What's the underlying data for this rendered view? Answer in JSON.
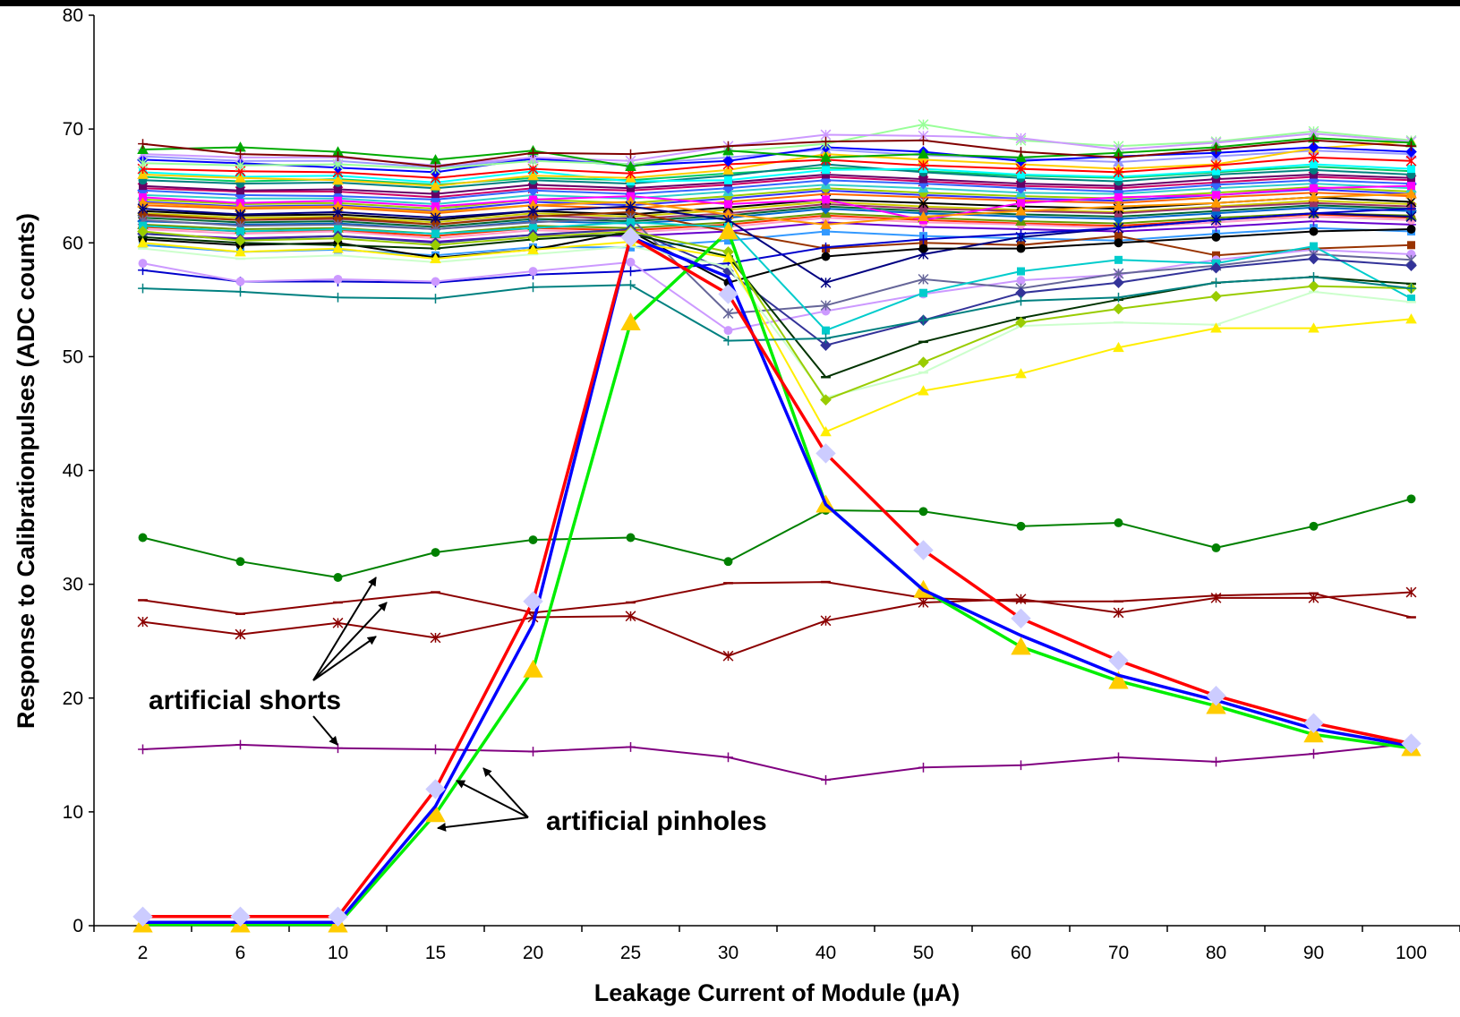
{
  "chart_data": {
    "type": "line",
    "xlabel": "Leakage Current of Module (µA)",
    "ylabel": "Response to Calibrationpulses (ADC counts)",
    "categories": [
      "2",
      "6",
      "10",
      "15",
      "20",
      "25",
      "30",
      "40",
      "50",
      "60",
      "70",
      "80",
      "90",
      "100"
    ],
    "ylim": [
      0,
      80
    ],
    "yticks": [
      "0",
      "10",
      "20",
      "30",
      "40",
      "50",
      "60",
      "70",
      "80"
    ],
    "grid": false,
    "annotations": [
      "artificial shorts",
      "artificial pinholes"
    ],
    "series_bundle_note": "",
    "series": [
      {
        "color": "#ff0000",
        "marker": "diamond",
        "markerColor": "#ccccff",
        "width": 3.5,
        "values": [
          0.8,
          0.8,
          0.8,
          12,
          28.5,
          60.5,
          55.5,
          41.5,
          33,
          27,
          23.3,
          20.2,
          17.8,
          16
        ]
      },
      {
        "color": "#0000ff",
        "marker": "none",
        "width": 3.5,
        "values": [
          0.3,
          0.3,
          0.3,
          10.5,
          26.5,
          60.5,
          57,
          37,
          29.5,
          25.5,
          22,
          19.8,
          17.3,
          15.8
        ]
      },
      {
        "color": "#00ee00",
        "marker": "triangle",
        "markerColor": "#ffcc00",
        "width": 3.5,
        "values": [
          0.1,
          0.1,
          0.1,
          9.8,
          22.5,
          53,
          61,
          37,
          29.5,
          24.5,
          21.5,
          19.3,
          16.8,
          15.6
        ]
      },
      {
        "color": "#008000",
        "marker": "circle",
        "width": 2,
        "values": [
          34.1,
          32,
          30.6,
          32.8,
          33.9,
          34.1,
          32,
          36.5,
          36.4,
          35.1,
          35.4,
          33.2,
          35.1,
          37.5
        ]
      },
      {
        "color": "#8b0000",
        "marker": "dash",
        "width": 2,
        "values": [
          28.6,
          27.4,
          28.4,
          29.3,
          27.5,
          28.4,
          30.1,
          30.2,
          28.8,
          28.5,
          28.5,
          29,
          29.2,
          27.1
        ]
      },
      {
        "color": "#8b0000",
        "marker": "star",
        "width": 2,
        "values": [
          26.7,
          25.6,
          26.6,
          25.3,
          27.1,
          27.2,
          23.7,
          26.8,
          28.4,
          28.7,
          27.5,
          28.8,
          28.8,
          29.3
        ]
      },
      {
        "color": "#800080",
        "marker": "plus",
        "width": 2,
        "values": [
          15.5,
          15.9,
          15.6,
          15.5,
          15.3,
          15.7,
          14.8,
          12.8,
          13.9,
          14.1,
          14.8,
          14.4,
          15.1,
          16
        ]
      },
      {
        "color": "#008080",
        "marker": "plus",
        "width": 2,
        "values": [
          56,
          55.7,
          55.2,
          55.1,
          56.1,
          56.3,
          51.4,
          51.6,
          53.2,
          54.9,
          55.2,
          56.5,
          57,
          56
        ]
      },
      {
        "color": "#ffee00",
        "marker": "triangle",
        "width": 2,
        "values": [
          60,
          59.2,
          59.5,
          58.6,
          59.4,
          60.1,
          58.7,
          43.4,
          47,
          48.5,
          50.8,
          52.5,
          52.5,
          53.3
        ]
      },
      {
        "color": "#99cc00",
        "marker": "diamond",
        "width": 2,
        "values": [
          61,
          60.2,
          60.4,
          59.8,
          60.5,
          61,
          59.2,
          46.2,
          49.5,
          53,
          54.2,
          55.3,
          56.2,
          56
        ]
      },
      {
        "color": "#003300",
        "marker": "dash",
        "width": 2,
        "values": [
          60.5,
          60,
          59.8,
          59.5,
          60.3,
          60.8,
          58.8,
          48.2,
          51.3,
          53.4,
          55,
          56.5,
          57,
          56.4
        ]
      },
      {
        "color": "#ccffcc",
        "marker": "dash",
        "width": 2,
        "values": [
          59.5,
          58.6,
          58.9,
          58.3,
          59,
          59.7,
          57.9,
          46.4,
          48.6,
          52.7,
          53,
          52.8,
          55.7,
          54.8
        ]
      },
      {
        "color": "#333399",
        "marker": "diamond",
        "width": 2,
        "values": [
          60.8,
          60.3,
          60.6,
          60,
          60.7,
          61.2,
          57.5,
          51,
          53.2,
          55.6,
          56.5,
          57.8,
          58.6,
          58
        ]
      },
      {
        "color": "#00cccc",
        "marker": "square",
        "width": 2,
        "values": [
          61.5,
          61,
          61.2,
          60.8,
          61.3,
          61.8,
          61.4,
          52.3,
          55.6,
          57.5,
          58.5,
          58.2,
          59.7,
          55.1
        ]
      },
      {
        "color": "#666699",
        "marker": "star",
        "width": 2,
        "values": [
          62,
          61.5,
          61.6,
          61.2,
          61.8,
          62.2,
          53.8,
          54.5,
          56.8,
          56,
          57.3,
          58,
          59,
          58.5
        ]
      },
      {
        "color": "#cc99ff",
        "marker": "circle",
        "width": 2,
        "values": [
          58.2,
          56.6,
          56.8,
          56.6,
          57.5,
          58.3,
          52.3,
          54,
          55.5,
          56.7,
          57.2,
          58.5,
          59.4,
          59
        ]
      },
      {
        "color": "#0000cc",
        "marker": "plus",
        "width": 2,
        "values": [
          57.6,
          56.6,
          56.6,
          56.5,
          57.2,
          57.5,
          58.2,
          59.6,
          60.3,
          60.8,
          61.3,
          62,
          62.6,
          63
        ]
      },
      {
        "color": "#000000",
        "marker": "circle",
        "width": 2,
        "values": [
          60.3,
          59.8,
          60,
          58.7,
          59.4,
          61,
          56.5,
          58.8,
          59.5,
          59.5,
          60,
          60.5,
          61,
          61.2
        ]
      },
      {
        "color": "#000080",
        "marker": "star",
        "width": 2,
        "values": [
          63,
          62.5,
          62.7,
          62.2,
          62.8,
          63.2,
          62,
          56.5,
          59,
          60.5,
          61.3,
          62,
          62.6,
          62.3
        ]
      },
      {
        "color": "#993300",
        "marker": "square",
        "width": 2,
        "values": [
          62.5,
          62,
          62.2,
          61.6,
          62.3,
          62.7,
          61,
          59.5,
          60,
          59.8,
          60.6,
          58.9,
          59.5,
          59.8
        ]
      },
      {
        "color": "#ff9900",
        "marker": "triangle",
        "width": 2,
        "values": [
          63.5,
          63.1,
          63.2,
          62.7,
          63.3,
          63.6,
          62.5,
          61.6,
          62.3,
          62.8,
          63.2,
          63.5,
          64,
          64.3
        ]
      },
      {
        "color": "#ff00ff",
        "marker": "square",
        "width": 2,
        "values": [
          64,
          63.5,
          63.7,
          63.2,
          63.8,
          64.1,
          63.4,
          63.8,
          62,
          63.5,
          64,
          64.2,
          64.8,
          65
        ]
      },
      {
        "color": "#800000",
        "marker": "plus",
        "width": 2,
        "values": [
          68.7,
          67.8,
          67.6,
          66.7,
          67.9,
          67.8,
          68.5,
          68.9,
          69,
          68,
          67.5,
          68.2,
          69,
          68.5
        ]
      },
      {
        "color": "#00aa00",
        "marker": "triangle",
        "width": 2,
        "values": [
          68.2,
          68.4,
          68,
          67.3,
          68.1,
          66.7,
          68.1,
          67.5,
          67.8,
          67.5,
          67.9,
          68.4,
          69.2,
          68.8
        ]
      },
      {
        "color": "#cc99ff",
        "marker": "star",
        "width": 2,
        "values": [
          67.8,
          67.5,
          67.5,
          66.8,
          67.5,
          67.2,
          68.5,
          69.5,
          69.4,
          69.2,
          68.2,
          68.8,
          69.6,
          68.9
        ]
      },
      {
        "color": "#99ff99",
        "marker": "star",
        "width": 2,
        "values": [
          67,
          66.8,
          66.9,
          66.5,
          67.2,
          66.9,
          68,
          68.7,
          70.4,
          69,
          68.5,
          68.9,
          69.8,
          69
        ]
      },
      {
        "color": "#0000ff",
        "marker": "diamond",
        "width": 2,
        "values": [
          67.3,
          67,
          66.6,
          66.2,
          67.4,
          66.8,
          67.2,
          68.4,
          68,
          67.2,
          67.6,
          67.9,
          68.4,
          68
        ]
      },
      {
        "color": "#ff0000",
        "marker": "star",
        "width": 2,
        "values": [
          66.5,
          66.3,
          66.2,
          65.7,
          66.5,
          66.1,
          66.9,
          67.3,
          66.8,
          66.5,
          66.2,
          66.8,
          67.5,
          67.2
        ]
      },
      {
        "color": "#ffcc00",
        "marker": "triangle",
        "width": 2,
        "values": [
          66,
          65.7,
          65.5,
          65,
          65.9,
          65.7,
          66.4,
          67.8,
          67.3,
          66.9,
          66.5,
          66.9,
          68.3,
          68.9
        ]
      },
      {
        "color": "#00ffff",
        "marker": "square",
        "width": 2,
        "values": [
          66.2,
          65.8,
          65.9,
          65.3,
          66.3,
          65.4,
          65.5,
          66.4,
          66.5,
          66,
          65.8,
          66.3,
          66.9,
          66.5
        ]
      },
      {
        "color": "#008080",
        "marker": "circle",
        "width": 2,
        "values": [
          65.5,
          65.2,
          65.3,
          64.8,
          65.5,
          65.2,
          65.9,
          66.9,
          66.2,
          65.7,
          65.4,
          66,
          66.4,
          66
        ]
      },
      {
        "color": "#660066",
        "marker": "square",
        "width": 2,
        "values": [
          65,
          64.6,
          64.7,
          64.3,
          65.1,
          64.8,
          65.3,
          66,
          65.6,
          65.2,
          65,
          65.6,
          66,
          65.7
        ]
      },
      {
        "color": "#3366ff",
        "marker": "diamond",
        "width": 2,
        "values": [
          64.6,
          64.2,
          64.1,
          63.8,
          64.6,
          64.3,
          64.8,
          65.5,
          65.2,
          64.8,
          64.5,
          65.1,
          65.5,
          65.2
        ]
      },
      {
        "color": "#33cccc",
        "marker": "triangle",
        "width": 2,
        "values": [
          64.2,
          63.9,
          63.9,
          63.4,
          64.2,
          63.9,
          64.5,
          65.1,
          64.8,
          64.4,
          64.3,
          64.8,
          65.2,
          64.8
        ]
      },
      {
        "color": "#99cc00",
        "marker": "circle",
        "width": 2,
        "values": [
          63.8,
          63.4,
          63.5,
          63,
          63.8,
          63.5,
          64.1,
          64.8,
          64.4,
          64.1,
          63.9,
          64.4,
          64.9,
          64.5
        ]
      },
      {
        "color": "#ff6600",
        "marker": "plus",
        "width": 2,
        "values": [
          63.3,
          63,
          63.1,
          62.6,
          63.3,
          63,
          63.6,
          64.3,
          64,
          63.7,
          63.5,
          64,
          64.4,
          64.1
        ]
      },
      {
        "color": "#000000",
        "marker": "star",
        "width": 2,
        "values": [
          62.8,
          62.4,
          62.5,
          62,
          62.8,
          62.5,
          63.1,
          63.8,
          63.5,
          63.2,
          63,
          63.5,
          64,
          63.6
        ]
      },
      {
        "color": "#993366",
        "marker": "square",
        "width": 2,
        "values": [
          62.4,
          62,
          62.1,
          61.6,
          62.4,
          62.1,
          62.6,
          63.4,
          63,
          62.8,
          62.6,
          63.1,
          63.5,
          63.2
        ]
      },
      {
        "color": "#0066cc",
        "marker": "diamond",
        "width": 2,
        "values": [
          61.9,
          61.6,
          61.7,
          61.2,
          61.9,
          61.7,
          62.2,
          63,
          62.6,
          62.3,
          62.1,
          62.6,
          63.1,
          62.8
        ]
      },
      {
        "color": "#669900",
        "marker": "triangle",
        "width": 2,
        "values": [
          61.6,
          61.2,
          61.3,
          60.8,
          61.5,
          61.3,
          61.8,
          62.6,
          62.2,
          61.9,
          61.7,
          62.2,
          62.6,
          62.4
        ]
      },
      {
        "color": "#ff99cc",
        "marker": "circle",
        "width": 2,
        "values": [
          61.2,
          60.8,
          61,
          60.4,
          61.1,
          60.9,
          61.4,
          62.2,
          61.8,
          61.6,
          61.3,
          61.8,
          62.3,
          62
        ]
      },
      {
        "color": "#6600cc",
        "marker": "plus",
        "width": 2,
        "values": [
          60.8,
          60.4,
          60.6,
          60.1,
          60.7,
          60.6,
          61,
          61.8,
          61.4,
          61.2,
          61,
          61.4,
          61.9,
          61.6
        ]
      },
      {
        "color": "#00cc66",
        "marker": "square",
        "width": 2,
        "values": [
          65.8,
          65.4,
          65.6,
          65.1,
          65.7,
          65.5,
          66.1,
          66.6,
          66.3,
          65.9,
          65.7,
          66.2,
          66.7,
          66.3
        ]
      },
      {
        "color": "#cc0066",
        "marker": "star",
        "width": 2,
        "values": [
          64.8,
          64.5,
          64.5,
          64,
          64.8,
          64.6,
          65.1,
          65.8,
          65.4,
          65,
          64.8,
          65.3,
          65.8,
          65.5
        ]
      },
      {
        "color": "#3333ff",
        "marker": "circle",
        "width": 2,
        "values": [
          63.6,
          63.2,
          63.3,
          62.8,
          63.6,
          63.3,
          63.9,
          64.6,
          64.2,
          63.9,
          63.7,
          64.2,
          64.7,
          64.3
        ]
      },
      {
        "color": "#cccc00",
        "marker": "diamond",
        "width": 2,
        "values": [
          62.6,
          62.2,
          62.3,
          61.8,
          62.6,
          62.3,
          62.9,
          63.6,
          63.2,
          62.9,
          62.7,
          63.2,
          63.7,
          63.4
        ]
      },
      {
        "color": "#9999ff",
        "marker": "triangle",
        "width": 2,
        "values": [
          67.6,
          67.2,
          67.2,
          66.6,
          67.4,
          66.9,
          67.5,
          68.2,
          67.7,
          67.4,
          67.1,
          67.6,
          68.1,
          67.8
        ]
      },
      {
        "color": "#006633",
        "marker": "plus",
        "width": 2,
        "values": [
          62.2,
          61.8,
          61.9,
          61.4,
          62.1,
          61.9,
          62.4,
          63.2,
          62.8,
          62.5,
          62.3,
          62.8,
          63.3,
          63
        ]
      },
      {
        "color": "#ff3300",
        "marker": "circle",
        "width": 2,
        "values": [
          61.4,
          61,
          61.1,
          60.6,
          61.3,
          61.1,
          61.6,
          62.4,
          62,
          61.7,
          61.5,
          62,
          62.5,
          62.2
        ]
      },
      {
        "color": "#3399ff",
        "marker": "square",
        "width": 2,
        "values": [
          59.8,
          59.2,
          59.4,
          58.9,
          59.6,
          59.6,
          60.2,
          61,
          60.6,
          60.4,
          60.2,
          60.8,
          61.3,
          61
        ]
      }
    ]
  }
}
